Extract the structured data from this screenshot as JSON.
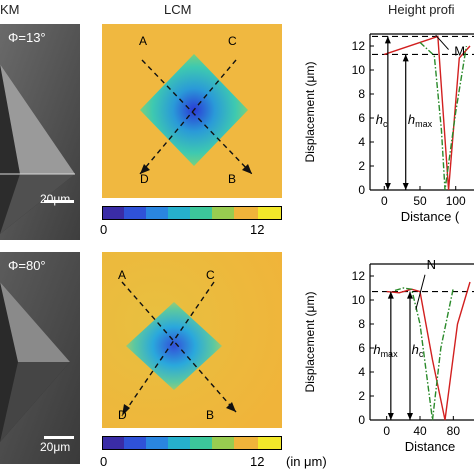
{
  "headers": {
    "sem": "KM",
    "lcm": "LCM",
    "height": "Height profi"
  },
  "rows": [
    {
      "phi": "Φ=13°",
      "scalebar": "20μm",
      "diag_labels": {
        "a": "A",
        "b": "B",
        "c": "C",
        "d": "D"
      },
      "colorbar": {
        "min": "0",
        "max": "12",
        "unit": ""
      },
      "plot": {
        "yticks": [
          "12",
          "10",
          "8",
          "6",
          "4",
          "2",
          "0"
        ],
        "xticks": [
          "0",
          "50",
          "100"
        ],
        "xlabel": "Distance (",
        "ylabel": "Displacement (μm)",
        "annot": {
          "first": "h",
          "first_sub": "c",
          "second": "h",
          "second_sub": "max",
          "point": "M"
        }
      }
    },
    {
      "phi": "Φ=80°",
      "scalebar": "20μm",
      "diag_labels": {
        "a": "A",
        "b": "B",
        "c": "C",
        "d": "D"
      },
      "colorbar": {
        "min": "0",
        "max": "12",
        "unit": "(in μm)"
      },
      "plot": {
        "yticks": [
          "12",
          "10",
          "8",
          "6",
          "4",
          "2",
          "0"
        ],
        "xticks": [
          "0",
          "40",
          "80"
        ],
        "xlabel": "Distance",
        "ylabel": "Displacement (μm)",
        "annot": {
          "first": "h",
          "first_sub": "max",
          "second": "h",
          "second_sub": "c",
          "point": "N"
        }
      }
    }
  ],
  "chart_data": [
    {
      "type": "line",
      "xlabel": "Distance (",
      "ylabel": "Displacement (μm)",
      "ylim": [
        0,
        13
      ],
      "xlim": [
        -20,
        120
      ],
      "series": [
        {
          "color": "#d22020",
          "style": "solid",
          "x": [
            0,
            25,
            50,
            75,
            90,
            105,
            120
          ],
          "y": [
            11.3,
            11.8,
            12.3,
            12.8,
            0.0,
            11.0,
            12.0
          ]
        },
        {
          "color": "#2a8a2a",
          "style": "dashdot",
          "x": [
            50,
            70,
            80,
            85,
            100,
            115
          ],
          "y": [
            12.3,
            11.2,
            5.0,
            0.0,
            6.5,
            12.0
          ]
        }
      ],
      "reference_lines": [
        12.8,
        11.3,
        0
      ]
    },
    {
      "type": "line",
      "xlabel": "Distance",
      "ylabel": "Displacement (μm)",
      "ylim": [
        0,
        13
      ],
      "xlim": [
        -20,
        100
      ],
      "series": [
        {
          "color": "#d22020",
          "style": "solid",
          "x": [
            0,
            15,
            30,
            40,
            55,
            70,
            85,
            100
          ],
          "y": [
            10.7,
            10.6,
            10.9,
            10.7,
            5.0,
            0.0,
            8.0,
            11.5
          ]
        },
        {
          "color": "#2a8a2a",
          "style": "dashdot",
          "x": [
            10,
            20,
            30,
            40,
            55,
            65,
            80
          ],
          "y": [
            10.8,
            11.0,
            10.9,
            8.0,
            0.0,
            6.0,
            11.0
          ]
        }
      ],
      "reference_lines": [
        10.7,
        0
      ]
    }
  ]
}
